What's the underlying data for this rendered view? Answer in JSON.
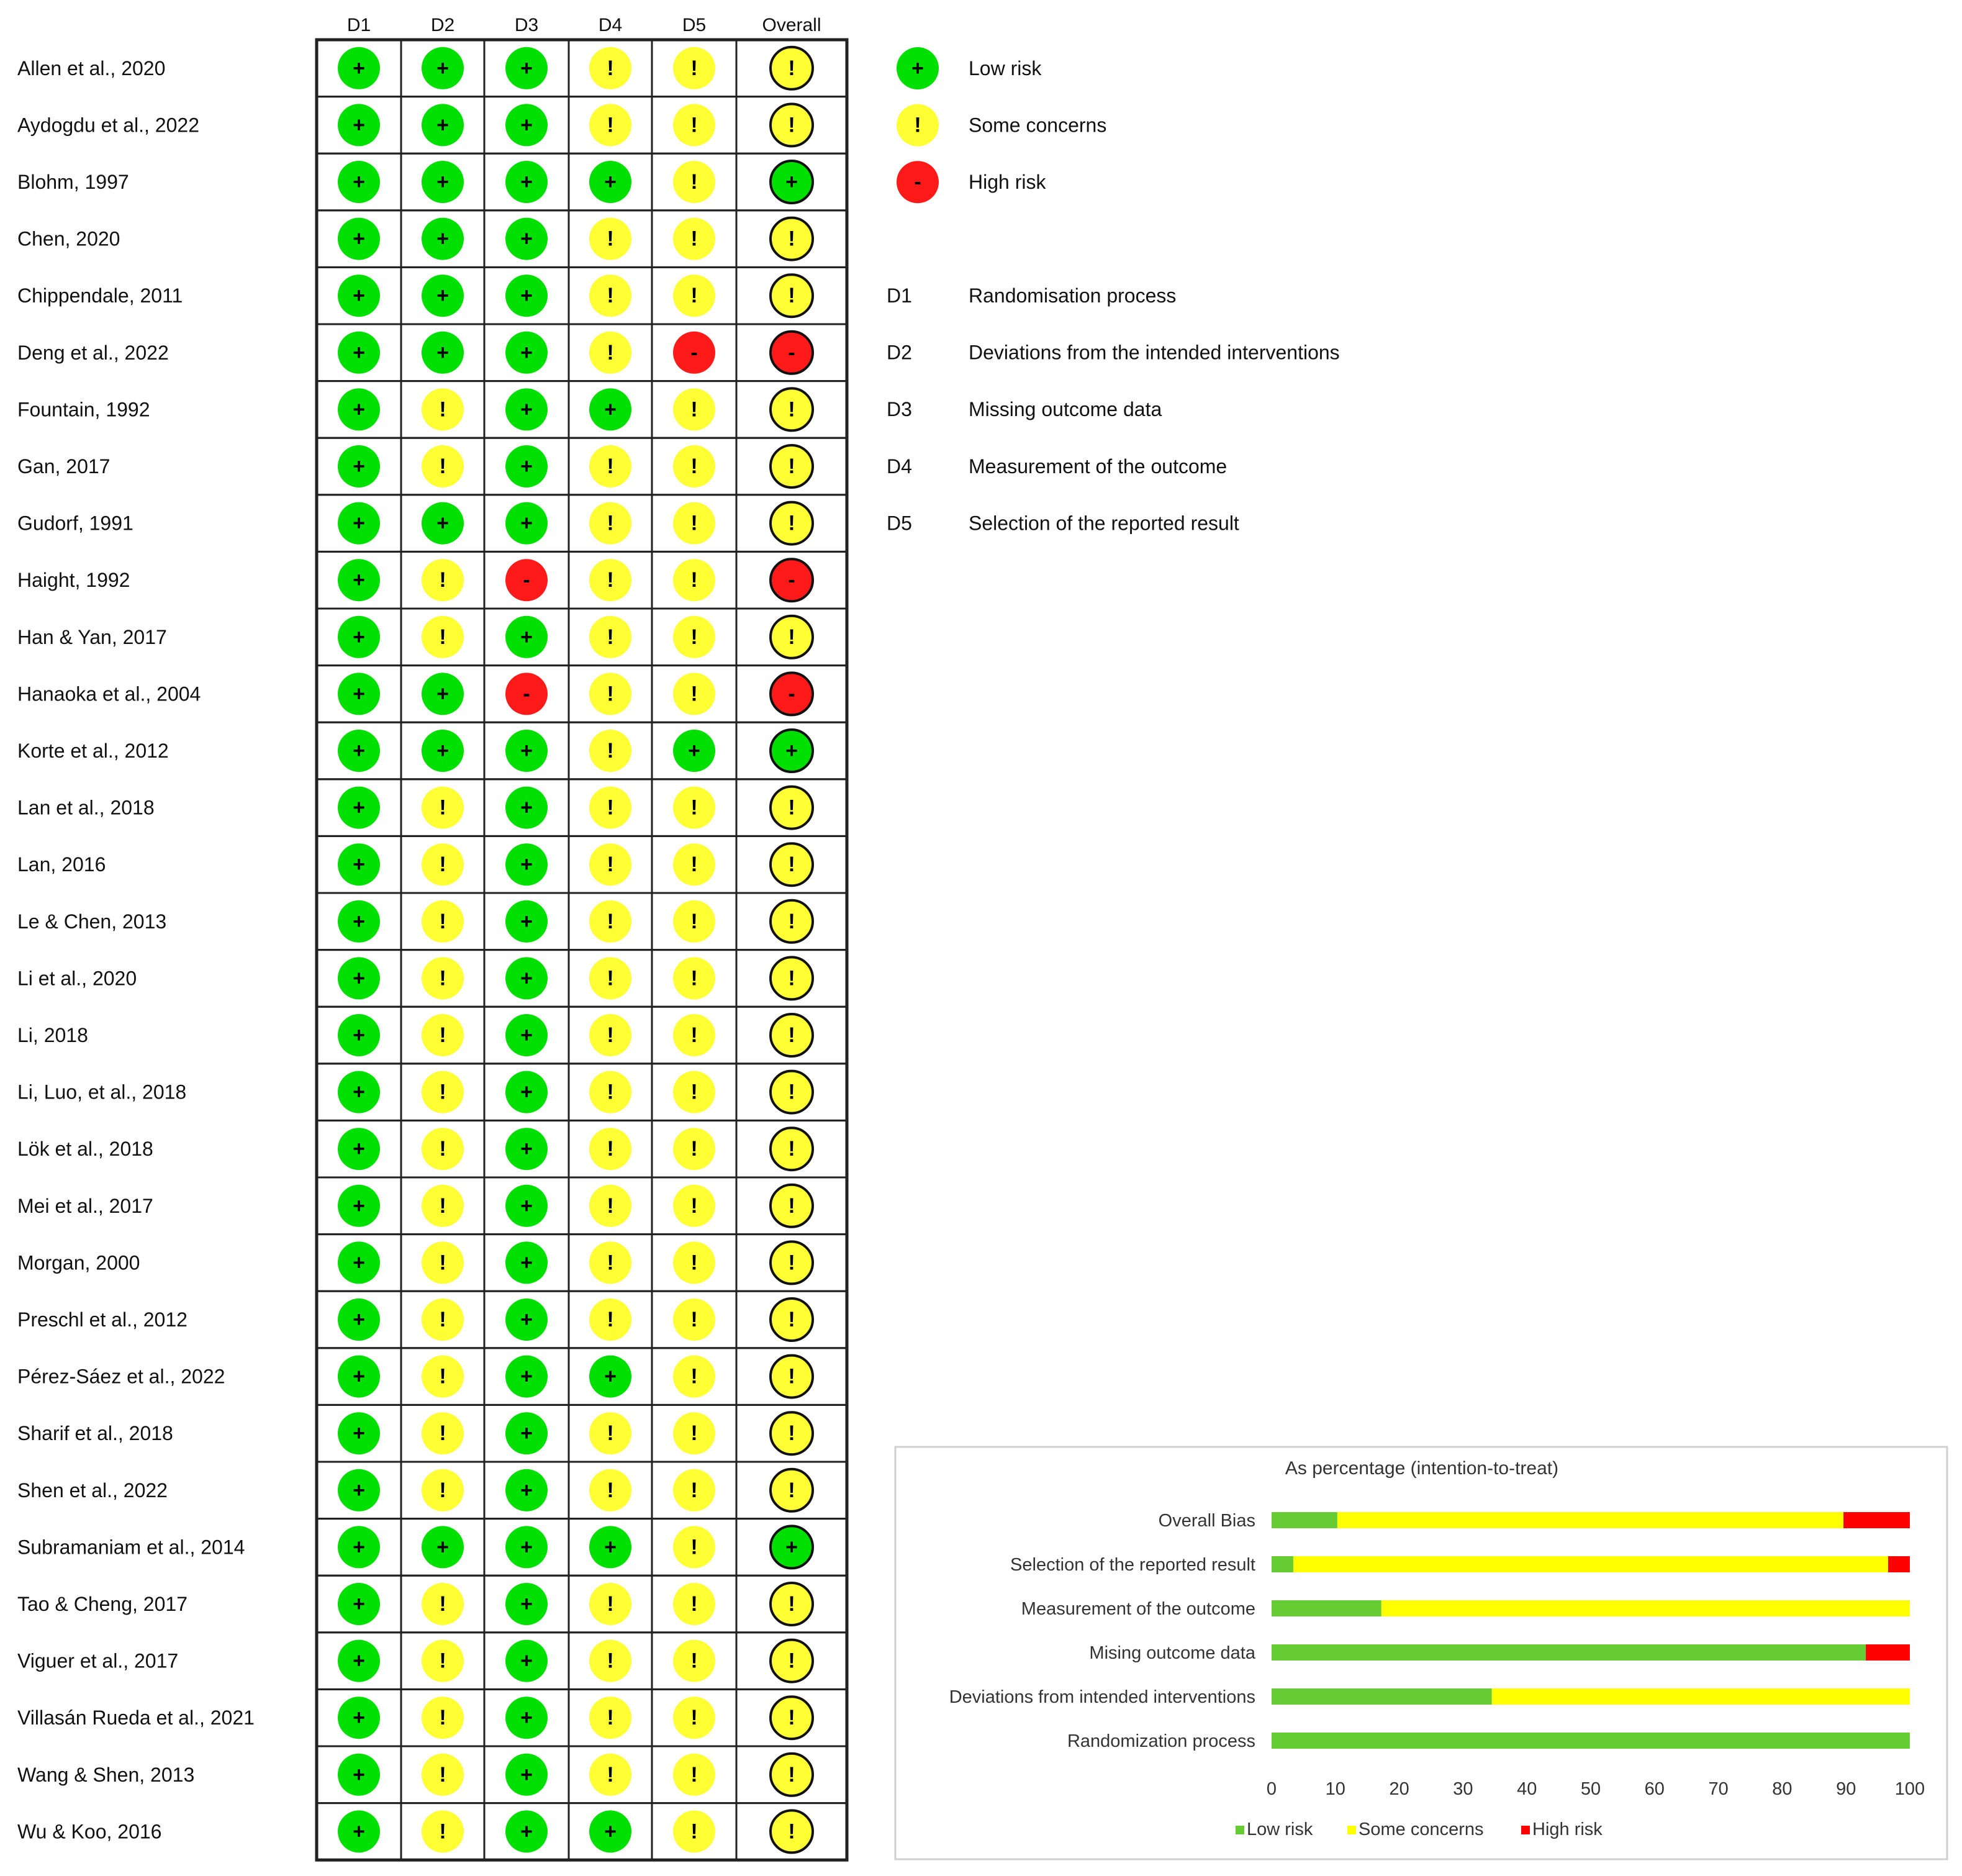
{
  "chart_data": [
    {
      "type": "table",
      "columns": [
        "D1",
        "D2",
        "D3",
        "D4",
        "D5",
        "Overall"
      ],
      "rows": [
        {
          "study": "Allen et al., 2020",
          "ratings": [
            "low",
            "low",
            "low",
            "some",
            "some",
            "some"
          ]
        },
        {
          "study": "Aydogdu et al., 2022",
          "ratings": [
            "low",
            "low",
            "low",
            "some",
            "some",
            "some"
          ]
        },
        {
          "study": "Blohm, 1997",
          "ratings": [
            "low",
            "low",
            "low",
            "low",
            "some",
            "low"
          ]
        },
        {
          "study": "Chen, 2020",
          "ratings": [
            "low",
            "low",
            "low",
            "some",
            "some",
            "some"
          ]
        },
        {
          "study": "Chippendale, 2011",
          "ratings": [
            "low",
            "low",
            "low",
            "some",
            "some",
            "some"
          ]
        },
        {
          "study": "Deng et al., 2022",
          "ratings": [
            "low",
            "low",
            "low",
            "some",
            "high",
            "high"
          ]
        },
        {
          "study": "Fountain, 1992",
          "ratings": [
            "low",
            "some",
            "low",
            "low",
            "some",
            "some"
          ]
        },
        {
          "study": "Gan, 2017",
          "ratings": [
            "low",
            "some",
            "low",
            "some",
            "some",
            "some"
          ]
        },
        {
          "study": "Gudorf, 1991",
          "ratings": [
            "low",
            "low",
            "low",
            "some",
            "some",
            "some"
          ]
        },
        {
          "study": "Haight, 1992",
          "ratings": [
            "low",
            "some",
            "high",
            "some",
            "some",
            "high"
          ]
        },
        {
          "study": "Han & Yan, 2017",
          "ratings": [
            "low",
            "some",
            "low",
            "some",
            "some",
            "some"
          ]
        },
        {
          "study": "Hanaoka et al., 2004",
          "ratings": [
            "low",
            "low",
            "high",
            "some",
            "some",
            "high"
          ]
        },
        {
          "study": "Korte et al., 2012",
          "ratings": [
            "low",
            "low",
            "low",
            "some",
            "low",
            "low"
          ]
        },
        {
          "study": "Lan et al., 2018",
          "ratings": [
            "low",
            "some",
            "low",
            "some",
            "some",
            "some"
          ]
        },
        {
          "study": "Lan, 2016",
          "ratings": [
            "low",
            "some",
            "low",
            "some",
            "some",
            "some"
          ]
        },
        {
          "study": "Le & Chen, 2013",
          "ratings": [
            "low",
            "some",
            "low",
            "some",
            "some",
            "some"
          ]
        },
        {
          "study": "Li et al., 2020",
          "ratings": [
            "low",
            "some",
            "low",
            "some",
            "some",
            "some"
          ]
        },
        {
          "study": "Li, 2018",
          "ratings": [
            "low",
            "some",
            "low",
            "some",
            "some",
            "some"
          ]
        },
        {
          "study": "Li, Luo, et al., 2018",
          "ratings": [
            "low",
            "some",
            "low",
            "some",
            "some",
            "some"
          ]
        },
        {
          "study": "Lök et al., 2018",
          "ratings": [
            "low",
            "some",
            "low",
            "some",
            "some",
            "some"
          ]
        },
        {
          "study": "Mei et al., 2017",
          "ratings": [
            "low",
            "some",
            "low",
            "some",
            "some",
            "some"
          ]
        },
        {
          "study": "Morgan, 2000",
          "ratings": [
            "low",
            "some",
            "low",
            "some",
            "some",
            "some"
          ]
        },
        {
          "study": "Preschl et al., 2012",
          "ratings": [
            "low",
            "some",
            "low",
            "some",
            "some",
            "some"
          ]
        },
        {
          "study": "Pérez-Sáez et al., 2022",
          "ratings": [
            "low",
            "some",
            "low",
            "low",
            "some",
            "some"
          ]
        },
        {
          "study": "Sharif et al., 2018",
          "ratings": [
            "low",
            "some",
            "low",
            "some",
            "some",
            "some"
          ]
        },
        {
          "study": "Shen et al., 2022",
          "ratings": [
            "low",
            "some",
            "low",
            "some",
            "some",
            "some"
          ]
        },
        {
          "study": "Subramaniam et al., 2014",
          "ratings": [
            "low",
            "low",
            "low",
            "low",
            "some",
            "low"
          ]
        },
        {
          "study": "Tao & Cheng, 2017",
          "ratings": [
            "low",
            "some",
            "low",
            "some",
            "some",
            "some"
          ]
        },
        {
          "study": "Viguer et al., 2017",
          "ratings": [
            "low",
            "some",
            "low",
            "some",
            "some",
            "some"
          ]
        },
        {
          "study": "Villasán Rueda et al., 2021",
          "ratings": [
            "low",
            "some",
            "low",
            "some",
            "some",
            "some"
          ]
        },
        {
          "study": "Wang & Shen, 2013",
          "ratings": [
            "low",
            "some",
            "low",
            "some",
            "some",
            "some"
          ]
        },
        {
          "study": "Wu & Koo, 2016",
          "ratings": [
            "low",
            "some",
            "low",
            "low",
            "some",
            "some"
          ]
        }
      ],
      "symbols": {
        "low": "+",
        "some": "!",
        "high": "-"
      },
      "colors": {
        "low": "#00e000",
        "some": "#ffff33",
        "high": "#ff1a1a"
      },
      "legend": [
        {
          "key": "low",
          "label": "Low risk"
        },
        {
          "key": "some",
          "label": "Some concerns"
        },
        {
          "key": "high",
          "label": "High risk"
        }
      ],
      "domain_key": [
        {
          "code": "D1",
          "label": "Randomisation process"
        },
        {
          "code": "D2",
          "label": "Deviations from the intended interventions"
        },
        {
          "code": "D3",
          "label": "Missing outcome data"
        },
        {
          "code": "D4",
          "label": "Measurement of the outcome"
        },
        {
          "code": "D5",
          "label": "Selection of the reported result"
        }
      ]
    },
    {
      "type": "bar",
      "orientation": "horizontal",
      "stacked": true,
      "title": "As percentage (intention-to-treat)",
      "categories": [
        "Overall Bias",
        "Selection of the reported result",
        "Measurement of the outcome",
        "Mising outcome data",
        "Deviations from intended interventions",
        "Randomization process"
      ],
      "series": [
        {
          "name": "Low risk",
          "color": "#66cc33",
          "values": [
            10.3,
            3.4,
            17.2,
            93.1,
            34.5,
            100
          ]
        },
        {
          "name": "Some concerns",
          "color": "#ffff00",
          "values": [
            79.3,
            93.2,
            82.8,
            0,
            65.5,
            0
          ]
        },
        {
          "name": "High risk",
          "color": "#ff0000",
          "values": [
            10.4,
            3.4,
            0,
            6.9,
            0,
            0
          ]
        }
      ],
      "xlim": [
        0,
        100
      ],
      "xticks": [
        "0",
        "10",
        "20",
        "30",
        "40",
        "50",
        "60",
        "70",
        "80",
        "90",
        "100"
      ],
      "legend_position": "bottom"
    }
  ]
}
